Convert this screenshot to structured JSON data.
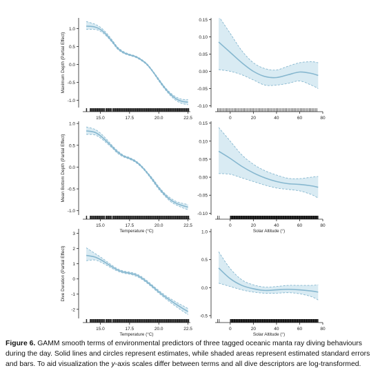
{
  "caption": {
    "label": "Figure 6.",
    "part1": " GAMM smooth terms of environmental predictors of three tagged oceanic manta ray diving behaviours during the day. Solid lines and circles represent estimates, while shaded areas represent estimated standard errors and bars. To aid visualization the ",
    "italic": "y",
    "part2": "-axis scales differ between terms and all dive descriptors are log-transformed."
  },
  "colors": {
    "line": "#86b7cf",
    "band": "#d9ebf3",
    "dash": "#86b7cf",
    "axis": "#222222"
  },
  "chart_data": [
    {
      "id": "depth-temp",
      "type": "line",
      "ylabel": "Maximum Depth (Partial Effect)",
      "xlabel": "",
      "xlim": [
        13.5,
        22.7
      ],
      "ylim": [
        -1.2,
        1.3
      ],
      "xticks": [
        15.0,
        17.5,
        20.0,
        22.5
      ],
      "xtick_labels": [
        "15.0",
        "17.5",
        "20.0",
        "22.5"
      ],
      "yticks": [
        -1.0,
        -0.5,
        0.0,
        0.5,
        1.0
      ],
      "ytick_labels": [
        "-1.0",
        "-0.5",
        "0.0",
        "0.5",
        "1.0"
      ],
      "x": [
        13.8,
        14.5,
        15.0,
        15.5,
        16.0,
        16.5,
        17.0,
        17.5,
        18.0,
        18.5,
        19.0,
        19.5,
        20.0,
        20.5,
        21.0,
        21.5,
        22.0,
        22.5
      ],
      "y": [
        1.07,
        1.05,
        0.98,
        0.84,
        0.65,
        0.45,
        0.33,
        0.27,
        0.22,
        0.13,
        0.0,
        -0.2,
        -0.43,
        -0.65,
        -0.83,
        -0.96,
        -1.03,
        -1.05
      ],
      "lower": [
        0.98,
        0.98,
        0.93,
        0.8,
        0.62,
        0.42,
        0.31,
        0.25,
        0.2,
        0.11,
        -0.02,
        -0.22,
        -0.46,
        -0.68,
        -0.87,
        -1.01,
        -1.09,
        -1.12
      ],
      "upper": [
        1.2,
        1.13,
        1.04,
        0.89,
        0.69,
        0.48,
        0.36,
        0.29,
        0.24,
        0.15,
        0.02,
        -0.18,
        -0.4,
        -0.62,
        -0.79,
        -0.91,
        -0.97,
        -0.98
      ],
      "rug": "dense"
    },
    {
      "id": "depth-solar",
      "type": "line",
      "ylabel": "",
      "xlabel": "",
      "xlim": [
        -13,
        80
      ],
      "ylim": [
        -0.105,
        0.155
      ],
      "xticks": [
        0,
        20,
        40,
        60,
        80
      ],
      "xtick_labels": [
        "0",
        "20",
        "40",
        "60",
        "80"
      ],
      "yticks": [
        -0.1,
        -0.05,
        0.0,
        0.05,
        0.1,
        0.15
      ],
      "ytick_labels": [
        "-0.10",
        "-0.05",
        "0.00",
        "0.05",
        "0.10",
        "0.15"
      ],
      "x": [
        -10,
        0,
        10,
        20,
        30,
        40,
        50,
        60,
        70,
        76
      ],
      "y": [
        0.085,
        0.055,
        0.025,
        0.0,
        -0.015,
        -0.018,
        -0.01,
        -0.002,
        -0.006,
        -0.012
      ],
      "lower": [
        0.005,
        0.0,
        -0.01,
        -0.025,
        -0.04,
        -0.04,
        -0.035,
        -0.028,
        -0.04,
        -0.05
      ],
      "upper": [
        0.16,
        0.11,
        0.06,
        0.025,
        0.008,
        0.004,
        0.015,
        0.025,
        0.028,
        0.025
      ],
      "rug": "regular"
    },
    {
      "id": "bottom-temp",
      "type": "line",
      "ylabel": "Mean Bottom Depth (Partial Effect)",
      "xlabel": "Temperature (°C)",
      "xlim": [
        13.5,
        22.7
      ],
      "ylim": [
        -1.1,
        1.05
      ],
      "xticks": [
        15.0,
        17.5,
        20.0,
        22.5
      ],
      "xtick_labels": [
        "15.0",
        "17.5",
        "20.0",
        "22.5"
      ],
      "yticks": [
        -1.0,
        -0.5,
        0.0,
        0.5,
        1.0
      ],
      "ytick_labels": [
        "-1.0",
        "-0.5",
        "0.0",
        "0.5",
        "1.0"
      ],
      "x": [
        13.8,
        14.5,
        15.0,
        15.5,
        16.0,
        16.5,
        17.0,
        17.5,
        18.0,
        18.5,
        19.0,
        19.5,
        20.0,
        20.5,
        21.0,
        21.5,
        22.0,
        22.5
      ],
      "y": [
        0.83,
        0.8,
        0.72,
        0.6,
        0.47,
        0.34,
        0.25,
        0.2,
        0.13,
        0.02,
        -0.13,
        -0.3,
        -0.48,
        -0.63,
        -0.75,
        -0.83,
        -0.88,
        -0.92
      ],
      "lower": [
        0.75,
        0.74,
        0.67,
        0.56,
        0.44,
        0.31,
        0.23,
        0.18,
        0.11,
        0.0,
        -0.15,
        -0.33,
        -0.51,
        -0.66,
        -0.79,
        -0.87,
        -0.93,
        -0.98
      ],
      "upper": [
        0.92,
        0.87,
        0.78,
        0.65,
        0.5,
        0.37,
        0.27,
        0.22,
        0.15,
        0.04,
        -0.11,
        -0.27,
        -0.45,
        -0.6,
        -0.71,
        -0.79,
        -0.83,
        -0.86
      ],
      "rug": "dense"
    },
    {
      "id": "bottom-solar",
      "type": "line",
      "ylabel": "",
      "xlabel": "Solar Altitude (°)",
      "xlim": [
        -13,
        80
      ],
      "ylim": [
        -0.105,
        0.155
      ],
      "xticks": [
        0,
        20,
        40,
        60,
        80
      ],
      "xtick_labels": [
        "0",
        "20",
        "40",
        "60",
        "80"
      ],
      "yticks": [
        -0.1,
        -0.05,
        0.0,
        0.05,
        0.1,
        0.15
      ],
      "ytick_labels": [
        "-0.10",
        "-0.05",
        "0.00",
        "0.05",
        "0.10",
        "0.15"
      ],
      "x": [
        -10,
        0,
        10,
        20,
        30,
        40,
        50,
        60,
        70,
        76
      ],
      "y": [
        0.072,
        0.052,
        0.03,
        0.012,
        -0.002,
        -0.012,
        -0.018,
        -0.02,
        -0.024,
        -0.028
      ],
      "lower": [
        0.01,
        0.008,
        -0.002,
        -0.012,
        -0.022,
        -0.03,
        -0.034,
        -0.038,
        -0.048,
        -0.058
      ],
      "upper": [
        0.138,
        0.1,
        0.062,
        0.036,
        0.018,
        0.006,
        -0.003,
        -0.004,
        0.0,
        0.002
      ],
      "rug": "dense-right"
    },
    {
      "id": "duration-temp",
      "type": "line",
      "ylabel": "Dive Duration (Partial Effect)",
      "xlabel": "Temperature (°C)",
      "xlim": [
        13.5,
        22.7
      ],
      "ylim": [
        -2.6,
        3.3
      ],
      "xticks": [
        15.0,
        17.5,
        20.0,
        22.5
      ],
      "xtick_labels": [
        "15.0",
        "17.5",
        "20.0",
        "22.5"
      ],
      "yticks": [
        -2,
        -1,
        0,
        1,
        2,
        3
      ],
      "ytick_labels": [
        "-2",
        "-1",
        "0",
        "1",
        "2",
        "3"
      ],
      "x": [
        13.8,
        14.5,
        15.0,
        15.5,
        16.0,
        16.5,
        17.0,
        17.5,
        18.0,
        18.5,
        19.0,
        19.5,
        20.0,
        20.5,
        21.0,
        21.5,
        22.0,
        22.5
      ],
      "y": [
        1.55,
        1.45,
        1.28,
        1.05,
        0.8,
        0.58,
        0.45,
        0.38,
        0.28,
        0.08,
        -0.2,
        -0.52,
        -0.85,
        -1.15,
        -1.42,
        -1.68,
        -1.92,
        -2.15
      ],
      "lower": [
        1.2,
        1.25,
        1.12,
        0.92,
        0.7,
        0.5,
        0.38,
        0.31,
        0.2,
        0.0,
        -0.28,
        -0.6,
        -0.94,
        -1.25,
        -1.55,
        -1.83,
        -2.1,
        -2.35
      ],
      "upper": [
        2.05,
        1.7,
        1.45,
        1.18,
        0.9,
        0.66,
        0.52,
        0.45,
        0.36,
        0.16,
        -0.12,
        -0.44,
        -0.76,
        -1.05,
        -1.3,
        -1.53,
        -1.74,
        -1.95
      ],
      "rug": "dense"
    },
    {
      "id": "duration-solar",
      "type": "line",
      "ylabel": "",
      "xlabel": "Solar Altitude (°)",
      "xlim": [
        -13,
        80
      ],
      "ylim": [
        -0.55,
        1.05
      ],
      "xticks": [
        0,
        20,
        40,
        60,
        80
      ],
      "xtick_labels": [
        "0",
        "20",
        "40",
        "60",
        "80"
      ],
      "yticks": [
        -0.5,
        0.0,
        0.5,
        1.0
      ],
      "ytick_labels": [
        "-0.5",
        "0.0",
        "0.5",
        "1.0"
      ],
      "x": [
        -10,
        0,
        10,
        20,
        30,
        40,
        50,
        60,
        70,
        76
      ],
      "y": [
        0.35,
        0.16,
        0.04,
        -0.02,
        -0.05,
        -0.04,
        -0.03,
        -0.04,
        -0.06,
        -0.08
      ],
      "lower": [
        0.08,
        0.02,
        -0.04,
        -0.08,
        -0.1,
        -0.1,
        -0.09,
        -0.11,
        -0.16,
        -0.22
      ],
      "upper": [
        0.64,
        0.34,
        0.14,
        0.05,
        0.01,
        0.02,
        0.04,
        0.04,
        0.04,
        0.05
      ],
      "rug": "dense-right"
    }
  ]
}
